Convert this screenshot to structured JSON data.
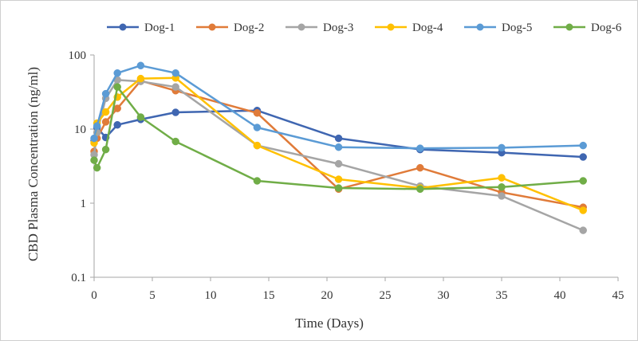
{
  "chart_data": {
    "type": "line",
    "title": "",
    "xlabel": "Time (Days)",
    "ylabel": "CBD Plasma Concentration (ng/ml)",
    "xlim": [
      0,
      45
    ],
    "ylim": [
      0.1,
      100
    ],
    "yscale": "log",
    "x_ticks": [
      0,
      5,
      10,
      15,
      20,
      25,
      30,
      35,
      40,
      45
    ],
    "y_ticks": [
      0.1,
      1,
      10,
      100
    ],
    "y_tick_labels": [
      "0.1",
      "1",
      "10",
      "100"
    ],
    "grid": false,
    "legend_position": "top",
    "series": [
      {
        "name": "Dog-1",
        "color": "#3F66B1",
        "x": [
          0,
          0.25,
          1,
          2,
          4,
          7,
          14,
          21,
          28,
          35,
          42
        ],
        "y": [
          7,
          10.5,
          7.7,
          11.4,
          13.5,
          16.8,
          17.8,
          7.5,
          5.3,
          4.8,
          4.2
        ]
      },
      {
        "name": "Dog-2",
        "color": "#E07B39",
        "x": [
          0,
          0.25,
          1,
          2,
          4,
          7,
          14,
          21,
          28,
          35,
          42
        ],
        "y": [
          5,
          7.5,
          12.5,
          19,
          45,
          33,
          16.5,
          1.55,
          3,
          1.4,
          0.88
        ]
      },
      {
        "name": "Dog-3",
        "color": "#A5A5A5",
        "x": [
          0,
          0.25,
          1,
          2,
          4,
          7,
          14,
          21,
          28,
          35,
          42
        ],
        "y": [
          4.5,
          9,
          26,
          46,
          44,
          37,
          6,
          3.4,
          1.7,
          1.25,
          0.43
        ]
      },
      {
        "name": "Dog-4",
        "color": "#FFC000",
        "x": [
          0,
          0.25,
          1,
          2,
          4,
          7,
          14,
          21,
          28,
          35,
          42
        ],
        "y": [
          6.5,
          12,
          17,
          27,
          48,
          49,
          6,
          2.1,
          1.6,
          2.2,
          0.8
        ]
      },
      {
        "name": "Dog-5",
        "color": "#5B9BD5",
        "x": [
          0,
          0.25,
          1,
          2,
          4,
          7,
          14,
          21,
          28,
          35,
          42
        ],
        "y": [
          7.5,
          11,
          30,
          57,
          72,
          57,
          10.5,
          5.7,
          5.5,
          5.6,
          6
        ]
      },
      {
        "name": "Dog-6",
        "color": "#70AD47",
        "x": [
          0,
          0.25,
          1,
          2,
          4,
          7,
          14,
          21,
          28,
          35,
          42
        ],
        "y": [
          3.8,
          3,
          5.3,
          37,
          14.5,
          6.8,
          2,
          1.6,
          1.55,
          1.65,
          2
        ]
      }
    ]
  },
  "colors": {
    "axis": "#A6A6A6",
    "text": "#333333"
  }
}
